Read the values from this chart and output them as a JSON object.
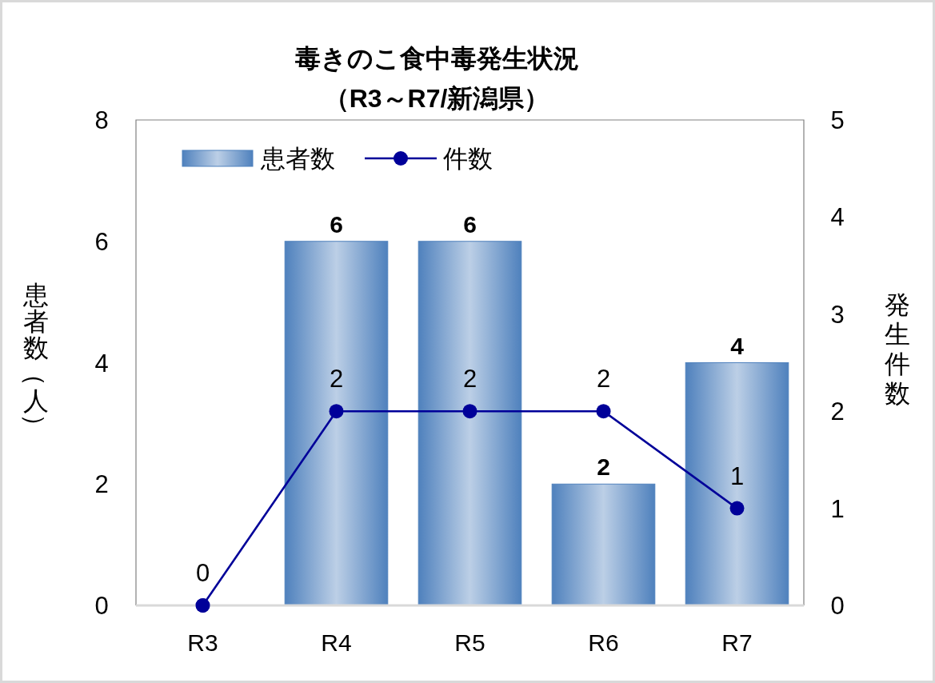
{
  "chart_data": {
    "type": "bar",
    "title": "毒きのこ食中毒発生状況",
    "subtitle": "（R3～R7/新潟県）",
    "ylabel": "患者数（人）",
    "y2label": "発生件数",
    "categories": [
      "R3",
      "R4",
      "R5",
      "R6",
      "R7"
    ],
    "series": [
      {
        "name": "患者数",
        "color": "#4f81bd",
        "values": [
          0,
          6,
          6,
          2,
          4
        ],
        "value_labels": [
          null,
          "6",
          "6",
          "2",
          "4"
        ]
      },
      {
        "name": "件数",
        "type": "line",
        "axis": "y2",
        "color": "#000099",
        "values": [
          0,
          2,
          2,
          2,
          1
        ],
        "value_labels": [
          "0",
          "2",
          "2",
          "2",
          "1"
        ]
      }
    ],
    "ylim": [
      0,
      8
    ],
    "yticks": [
      0,
      2,
      4,
      6,
      8
    ],
    "y2lim": [
      0,
      5
    ],
    "y2ticks": [
      0,
      1,
      2,
      3,
      4,
      5
    ],
    "legend": "top left",
    "marker": "circle"
  }
}
